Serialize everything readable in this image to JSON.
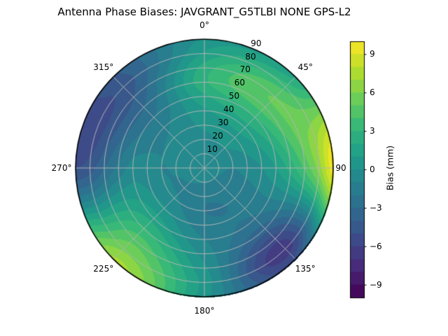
{
  "title": "Antenna Phase Biases: JAVGRANT_G5TLBI NONE GPS-L2",
  "polar": {
    "angle_labels": [
      "0°",
      "45°",
      "90",
      "135°",
      "180°",
      "225°",
      "270°",
      "315°"
    ],
    "radial_labels": [
      "10",
      "20",
      "30",
      "40",
      "50",
      "60",
      "70",
      "80",
      "90"
    ]
  },
  "colorbar": {
    "label": "Bias (mm)",
    "ticks": [
      "9",
      "6",
      "3",
      "0",
      "−3",
      "−6",
      "−9"
    ],
    "tick_values": [
      9,
      6,
      3,
      0,
      -3,
      -6,
      -9
    ]
  },
  "chart_data": {
    "type": "heatmap",
    "projection": "polar",
    "title": "Antenna Phase Biases: JAVGRANT_G5TLBI NONE GPS-L2",
    "colormap": "viridis",
    "value_label": "Bias (mm)",
    "clim": [
      -10,
      10
    ],
    "contour_step_mm": 1,
    "grid": true,
    "azimuth_deg": [
      0,
      45,
      90,
      135,
      180,
      225,
      270,
      315
    ],
    "zenith_deg": [
      0,
      10,
      20,
      30,
      40,
      50,
      60,
      70,
      80,
      90
    ],
    "bias_mm": [
      [
        -0.5,
        -0.5,
        -0.3,
        0.2,
        0.8,
        1.8,
        2.8,
        2.5,
        1.2,
        0.3
      ],
      [
        -0.5,
        -0.4,
        0.0,
        0.6,
        1.6,
        3.0,
        4.6,
        5.0,
        3.6,
        1.8
      ],
      [
        -0.5,
        -0.8,
        -1.0,
        -0.6,
        0.0,
        1.0,
        2.4,
        4.2,
        6.5,
        9.7
      ],
      [
        -0.5,
        -1.0,
        -1.6,
        -1.8,
        -1.8,
        -2.2,
        -3.6,
        -5.6,
        -6.6,
        -4.8
      ],
      [
        -0.5,
        -1.0,
        -1.8,
        -2.0,
        -1.6,
        -1.0,
        -0.4,
        0.2,
        0.6,
        0.4
      ],
      [
        -0.5,
        -0.8,
        -1.2,
        -0.8,
        0.2,
        1.6,
        3.2,
        4.6,
        5.8,
        7.2
      ],
      [
        -0.5,
        -0.6,
        -0.9,
        -1.0,
        -0.7,
        -0.6,
        -1.6,
        -3.0,
        -4.4,
        -5.0
      ],
      [
        -0.5,
        -0.5,
        -0.6,
        -0.8,
        -1.2,
        -2.0,
        -3.0,
        -4.0,
        -4.6,
        -4.2
      ]
    ]
  }
}
